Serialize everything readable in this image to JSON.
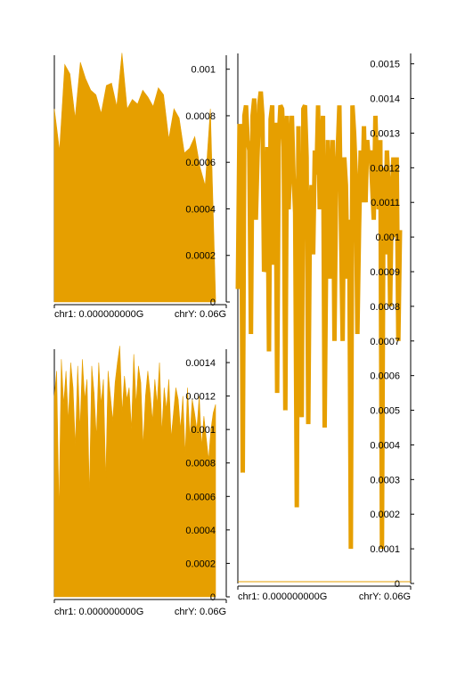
{
  "colors": {
    "fill": "#e69f00",
    "axis": "#000000"
  },
  "chart_data": [
    {
      "type": "area",
      "xlabel_left": "chr1: 0.000000000G",
      "xlabel_right": "chrY: 0.06G",
      "yticks": [
        0,
        0.0002,
        0.0004,
        0.0006,
        0.0008,
        0.001
      ],
      "ytick_labels": [
        "0",
        "0.0002",
        "0.0004",
        "0.0006",
        "0.0008",
        "0.001"
      ],
      "ylim": [
        0,
        0.00106
      ],
      "values": [
        0.00083,
        0.00065,
        0.00102,
        0.00098,
        0.00079,
        0.00103,
        0.00096,
        0.00091,
        0.00089,
        0.00081,
        0.00093,
        0.00094,
        0.00084,
        0.00107,
        0.00083,
        0.00087,
        0.00085,
        0.00091,
        0.00088,
        0.00084,
        0.00092,
        0.00089,
        0.0007,
        0.00083,
        0.00079,
        0.00064,
        0.00066,
        0.00071,
        0.00058,
        0.0005,
        0.00083,
        2e-05
      ]
    },
    {
      "type": "area",
      "xlabel_left": "chr1: 0.000000000G",
      "xlabel_right": "chrY: 0.06G",
      "yticks": [
        0,
        0.0002,
        0.0004,
        0.0006,
        0.0008,
        0.001,
        0.0012,
        0.0014
      ],
      "ytick_labels": [
        "0",
        "0.0002",
        "0.0004",
        "0.0006",
        "0.0008",
        "0.001",
        "0.0012",
        "0.0014"
      ],
      "ylim": [
        0,
        0.00148
      ],
      "values": [
        0.0012,
        0.00135,
        0.0005,
        0.00142,
        0.00115,
        0.00135,
        0.00105,
        0.0014,
        0.00125,
        0.0009,
        0.00138,
        0.001,
        0.00142,
        0.00118,
        0.0013,
        0.0006,
        0.00138,
        0.00122,
        0.00095,
        0.0014,
        0.00115,
        0.0013,
        0.0007,
        0.00135,
        0.0012,
        0.00105,
        0.00128,
        0.0014,
        0.0015,
        0.0011,
        0.00132,
        0.00118,
        0.00125,
        0.001,
        0.00145,
        0.00115,
        0.00138,
        0.00128,
        0.0009,
        0.0012,
        0.00135,
        0.00122,
        0.00105,
        0.0013,
        0.00115,
        0.0014,
        0.00098,
        0.00125,
        0.00112,
        0.0013,
        0.00095,
        0.0011,
        0.00125,
        0.00118,
        0.001,
        0.0012,
        0.00085,
        0.00125,
        0.00095,
        0.00118,
        0.0011,
        0.001,
        0.0012,
        0.0009,
        0.00108,
        0.00095,
        0.00082,
        0.001,
        0.0011,
        0.00115
      ]
    },
    {
      "type": "line",
      "xlabel_left": "chr1: 0.000000000G",
      "xlabel_right": "chrY: 0.06G",
      "yticks": [
        0,
        0.0001,
        0.0002,
        0.0003,
        0.0004,
        0.0005,
        0.0006,
        0.0007,
        0.0008,
        0.0009,
        0.001,
        0.0011,
        0.0012,
        0.0013,
        0.0014,
        0.0015
      ],
      "ytick_labels": [
        "0",
        "0.0001",
        "0.0002",
        "0.0003",
        "0.0004",
        "0.0005",
        "0.0006",
        "0.0007",
        "0.0008",
        "0.0009",
        "0.001",
        "0.0011",
        "0.0012",
        "0.0013",
        "0.0014",
        "0.0015"
      ],
      "ylim": [
        0,
        0.00153
      ],
      "values": [
        0.00085,
        0.00132,
        0.00132,
        0.00032,
        0.00135,
        0.00138,
        0.00128,
        0.00125,
        0.00072,
        0.00135,
        0.0014,
        0.00105,
        0.00123,
        0.00138,
        0.00142,
        0.00135,
        0.0009,
        0.00092,
        0.00126,
        0.00067,
        0.00134,
        0.00138,
        0.00092,
        0.00133,
        0.00055,
        0.00128,
        0.00138,
        0.00137,
        0.00126,
        0.0005,
        0.00135,
        0.00108,
        0.00123,
        0.00135,
        0.00118,
        0.00107,
        0.00022,
        0.00132,
        0.00072,
        0.00048,
        0.00137,
        0.00138,
        0.00123,
        0.00046,
        0.00105,
        0.00115,
        0.00095,
        0.00125,
        0.00118,
        0.00138,
        0.00108,
        0.00125,
        0.00135,
        0.00045,
        0.00098,
        0.00128,
        0.00088,
        0.00115,
        0.00128,
        0.0007,
        0.00115,
        0.00125,
        0.00138,
        0.00102,
        0.0007,
        0.00123,
        0.00115,
        0.00088,
        0.00105,
        0.0001,
        0.00138,
        0.0013,
        0.00118,
        0.00072,
        0.00102,
        0.00125,
        0.0011,
        0.00132,
        0.0011,
        0.00128,
        0.00122,
        0.00125,
        0.00115,
        0.00105,
        0.00135,
        0.00118,
        0.00108,
        0.00128,
        0.0001,
        0.0012,
        0.00095,
        0.00125,
        0.00115,
        0.0008,
        0.00112,
        0.00123,
        0.001,
        0.00123,
        0.0007,
        0.00102
      ]
    }
  ]
}
